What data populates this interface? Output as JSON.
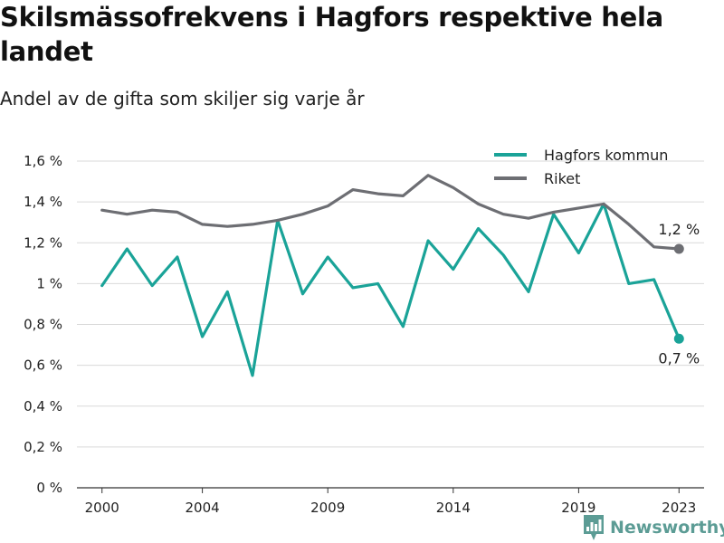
{
  "header": {
    "title": "Skilsmässofrekvens i Hagfors respektive hela landet",
    "subtitle": "Andel av de gifta som skiljer sig varje år"
  },
  "brand": {
    "name": "Newsworthy",
    "icon": "bar-chart-logo-icon",
    "color": "#5c9c95"
  },
  "chart_data": {
    "type": "line",
    "title": "Skilsmässofrekvens i Hagfors respektive hela landet",
    "subtitle": "Andel av de gifta som skiljer sig varje år",
    "xlabel": "",
    "ylabel": "",
    "x": [
      2000,
      2001,
      2002,
      2003,
      2004,
      2005,
      2006,
      2007,
      2008,
      2009,
      2010,
      2011,
      2012,
      2013,
      2014,
      2015,
      2016,
      2017,
      2018,
      2019,
      2020,
      2021,
      2022,
      2023
    ],
    "x_ticks": [
      2000,
      2004,
      2009,
      2014,
      2019,
      2023
    ],
    "x_tick_labels": [
      "2000",
      "2004",
      "2009",
      "2014",
      "2019",
      "2023"
    ],
    "xlim": [
      1999,
      2024
    ],
    "ylim": [
      0,
      1.6
    ],
    "y_ticks": [
      0,
      0.2,
      0.4,
      0.6,
      0.8,
      1.0,
      1.2,
      1.4,
      1.6
    ],
    "y_tick_labels": [
      "0 %",
      "0,2 %",
      "0,4 %",
      "0,6 %",
      "0,8 %",
      "1 %",
      "1,2 %",
      "1,4 %",
      "1,6 %"
    ],
    "grid": true,
    "legend_position": "top-right",
    "series": [
      {
        "name": "Hagfors kommun",
        "color": "#1aa398",
        "values": [
          0.99,
          1.17,
          0.99,
          1.13,
          0.74,
          0.96,
          0.55,
          1.31,
          0.95,
          1.13,
          0.98,
          1.0,
          0.79,
          1.21,
          1.07,
          1.27,
          1.14,
          0.96,
          1.34,
          1.15,
          1.39,
          1.0,
          1.02,
          0.73
        ],
        "end_label": "0,7 %"
      },
      {
        "name": "Riket",
        "color": "#6d6e73",
        "values": [
          1.36,
          1.34,
          1.36,
          1.35,
          1.29,
          1.28,
          1.29,
          1.31,
          1.34,
          1.38,
          1.46,
          1.44,
          1.43,
          1.53,
          1.47,
          1.39,
          1.34,
          1.32,
          1.35,
          1.37,
          1.39,
          1.29,
          1.18,
          1.17
        ],
        "end_label": "1,2 %"
      }
    ]
  }
}
